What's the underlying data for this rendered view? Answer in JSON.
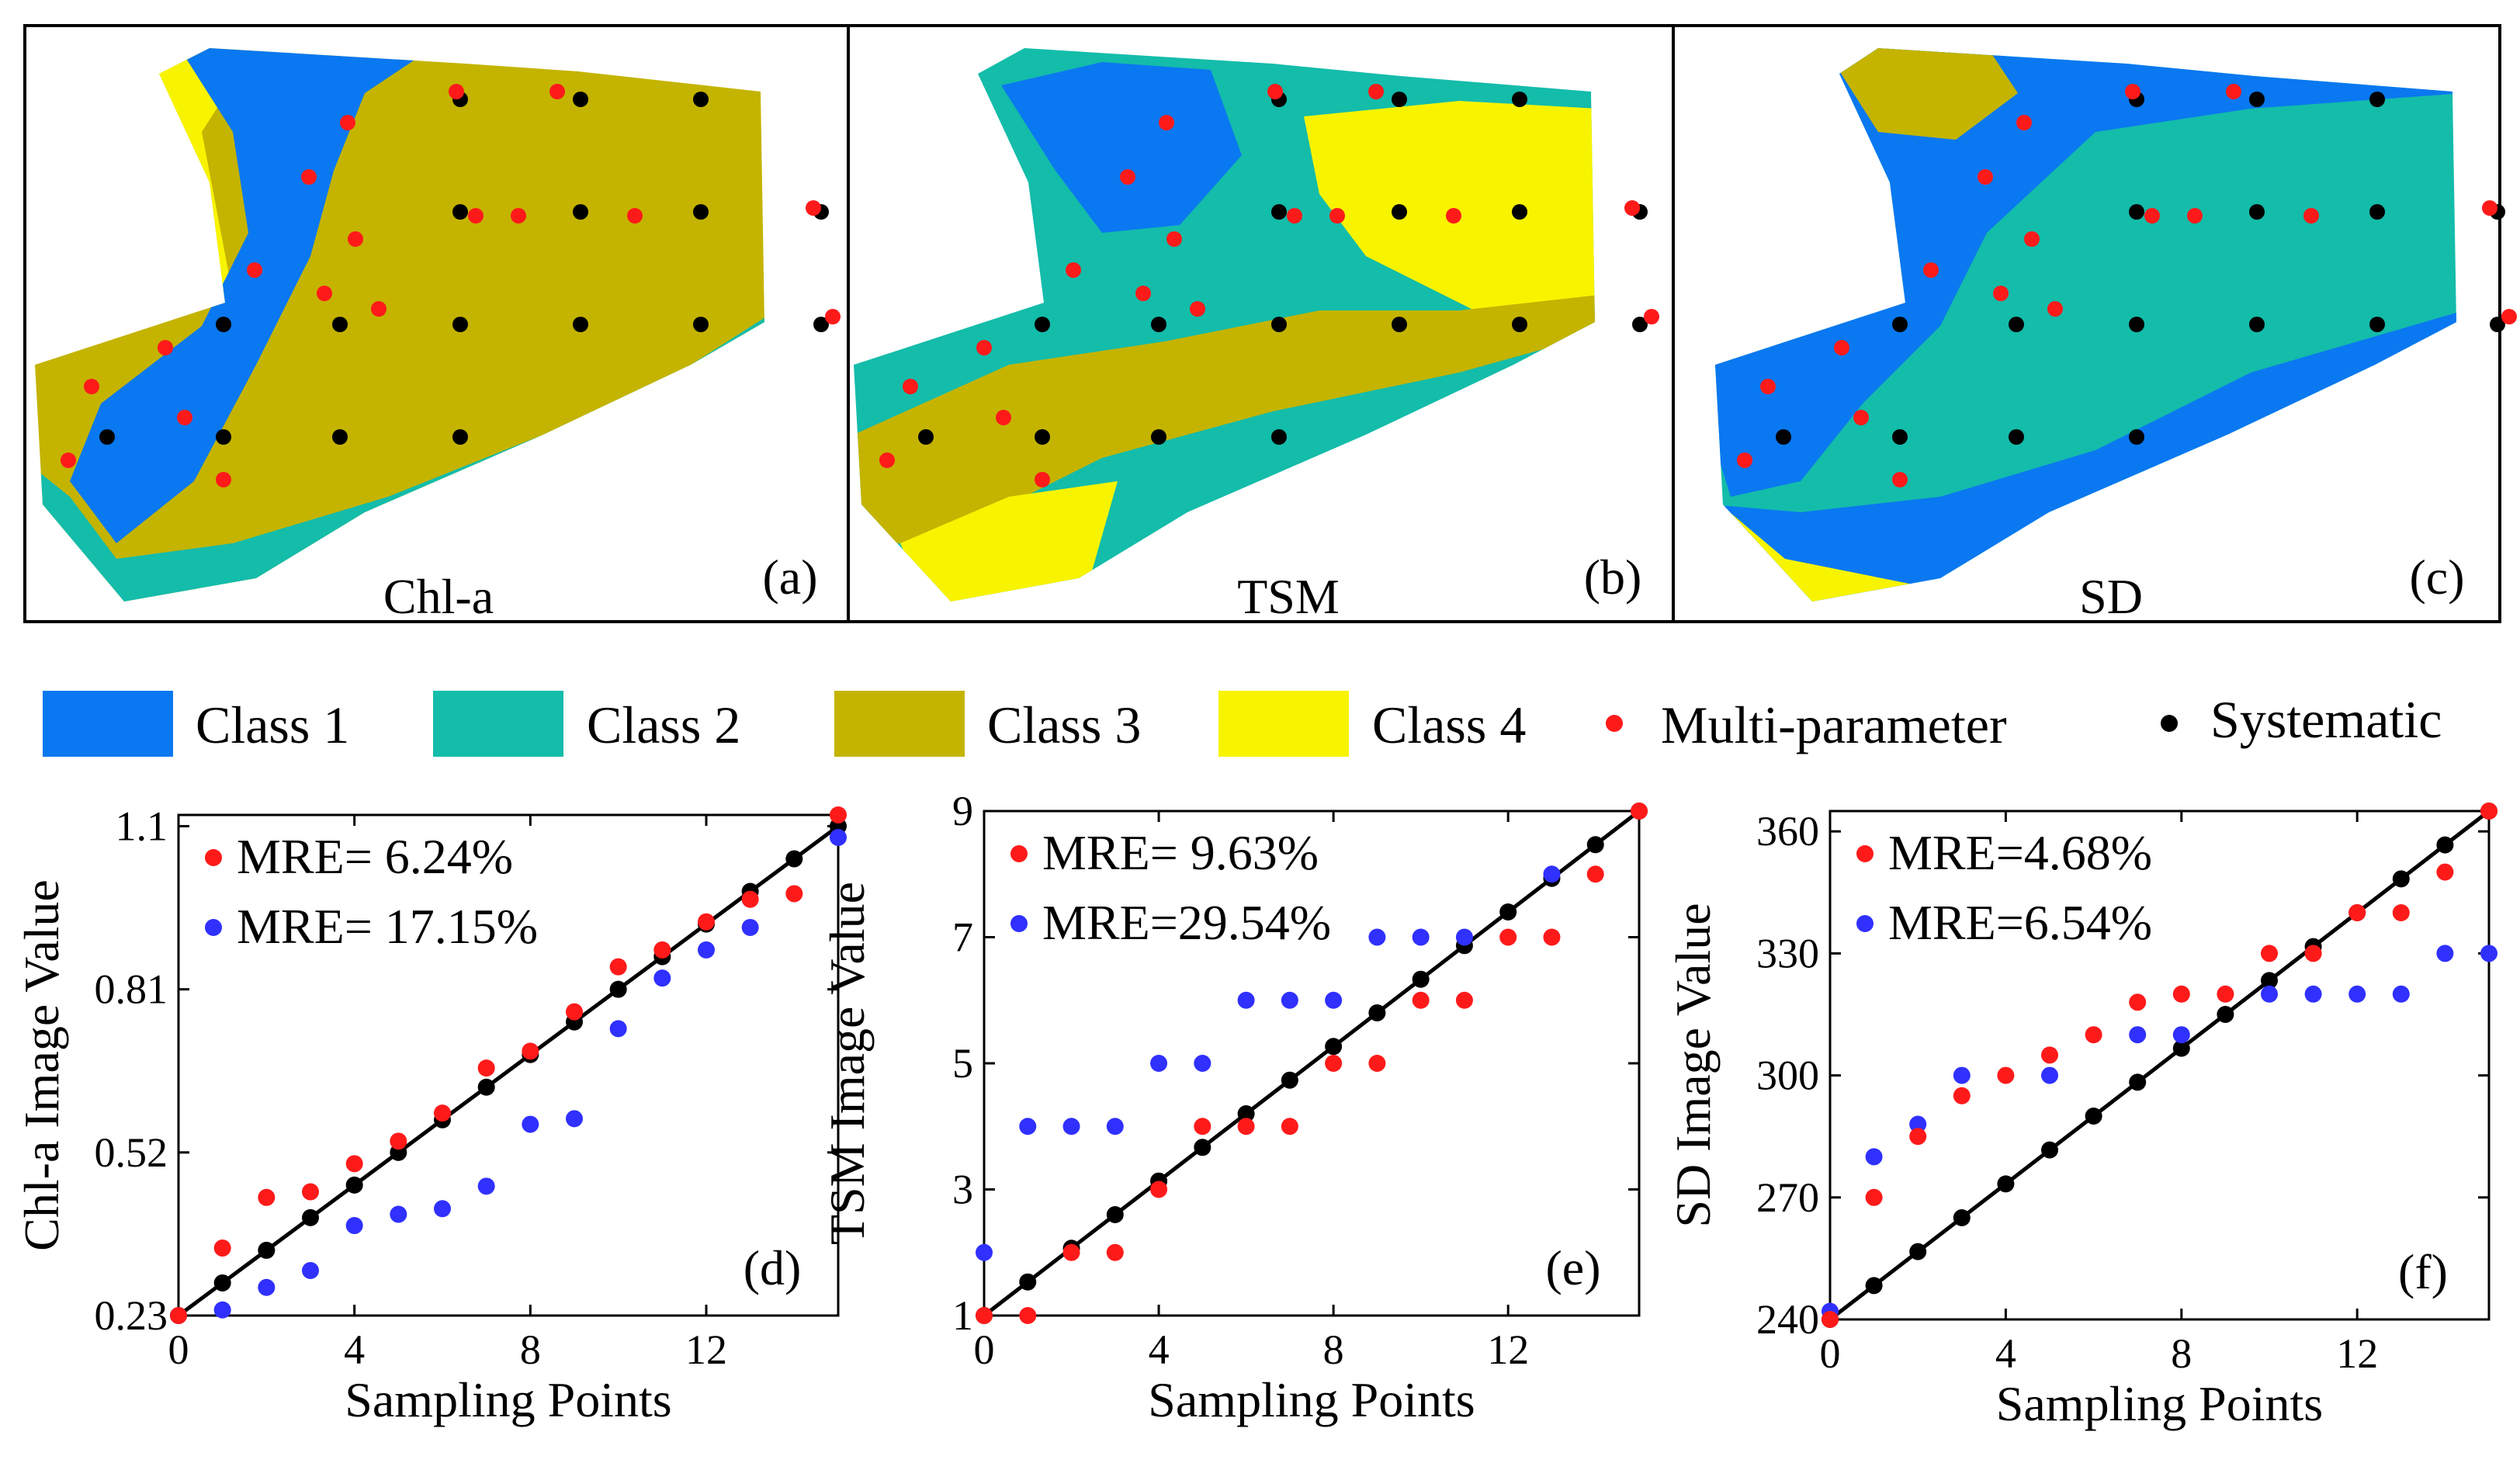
{
  "colors": {
    "class1": "#0a78f0",
    "class2": "#14bcaa",
    "class3": "#c4b400",
    "class4": "#f8f400",
    "multi": "#ff1a1a",
    "systematic": "#000000"
  },
  "maps": [
    {
      "id": "a",
      "label": "Chl-a",
      "tag": "(a)"
    },
    {
      "id": "b",
      "label": "TSM",
      "tag": "(b)"
    },
    {
      "id": "c",
      "label": "SD",
      "tag": "(c)"
    }
  ],
  "legend": {
    "class1": "Class 1",
    "class2": "Class 2",
    "class3": "Class 3",
    "class4": "Class 4",
    "multi": "Multi-parameter",
    "systematic": "Systematic"
  },
  "chart_data": [
    {
      "id": "d",
      "type": "scatter",
      "tag": "(d)",
      "xlabel": "Sampling Points",
      "ylabel": "Chl-a Image Value",
      "xlim": [
        0,
        15
      ],
      "ylim": [
        0.23,
        1.12
      ],
      "xticks": [
        0,
        4,
        8,
        12
      ],
      "xtick_labels": [
        "0",
        "4",
        "8",
        "12"
      ],
      "yticks": [
        0.23,
        0.52,
        0.81,
        1.1
      ],
      "ytick_labels": [
        "0.23",
        "0.52",
        "0.81",
        "1.1"
      ],
      "series": [
        {
          "name": "Multi-parameter",
          "color": "#ff1a1a",
          "label": "MRE= 6.24%",
          "x": [
            0,
            1,
            2,
            3,
            4,
            5,
            6,
            7,
            8,
            9,
            10,
            11,
            12,
            13,
            14,
            15
          ],
          "y": [
            0.23,
            0.35,
            0.44,
            0.45,
            0.5,
            0.54,
            0.59,
            0.67,
            0.7,
            0.77,
            0.85,
            0.88,
            0.93,
            0.97,
            0.98,
            1.12
          ]
        },
        {
          "name": "Systematic",
          "color": "#3030ff",
          "label": "MRE= 17.15%",
          "x": [
            0,
            1,
            2,
            3,
            4,
            5,
            6,
            7,
            8,
            9,
            10,
            11,
            12,
            13,
            14,
            15
          ],
          "y": [
            0.23,
            0.24,
            0.28,
            0.31,
            0.39,
            0.41,
            0.42,
            0.46,
            0.57,
            0.58,
            0.74,
            0.83,
            0.88,
            0.92,
            null,
            1.08
          ]
        },
        {
          "name": "1:1 line",
          "color": "#000000",
          "x": [
            0,
            1,
            2,
            3,
            4,
            5,
            6,
            7,
            8,
            9,
            10,
            11,
            12,
            13,
            14,
            15
          ],
          "y": [
            0.23,
            0.288,
            0.346,
            0.404,
            0.462,
            0.52,
            0.578,
            0.636,
            0.694,
            0.752,
            0.81,
            0.868,
            0.926,
            0.984,
            1.042,
            1.1
          ]
        }
      ]
    },
    {
      "id": "e",
      "type": "scatter",
      "tag": "(e)",
      "xlabel": "Sampling Points",
      "ylabel": "TSM Image Value",
      "xlim": [
        0,
        15
      ],
      "ylim": [
        1,
        9
      ],
      "xticks": [
        0,
        4,
        8,
        12
      ],
      "xtick_labels": [
        "0",
        "4",
        "8",
        "12"
      ],
      "yticks": [
        1,
        3,
        5,
        7,
        9
      ],
      "ytick_labels": [
        "1",
        "3",
        "5",
        "7",
        "9"
      ],
      "series": [
        {
          "name": "Multi-parameter",
          "color": "#ff1a1a",
          "label": "MRE=  9.63%",
          "x": [
            0,
            1,
            2,
            3,
            4,
            5,
            6,
            7,
            8,
            9,
            10,
            11,
            12,
            13,
            14,
            15
          ],
          "y": [
            1,
            1,
            2,
            2,
            3,
            4,
            4,
            4,
            5,
            5,
            6,
            6,
            7,
            7,
            8,
            9
          ]
        },
        {
          "name": "Systematic",
          "color": "#3030ff",
          "label": "MRE=29.54%",
          "x": [
            0,
            1,
            2,
            3,
            4,
            5,
            6,
            7,
            8,
            9,
            10,
            11,
            12,
            13,
            14,
            15
          ],
          "y": [
            2,
            4,
            4,
            4,
            5,
            5,
            6,
            6,
            6,
            7,
            7,
            7,
            null,
            8,
            null,
            null
          ]
        },
        {
          "name": "1:1 line",
          "color": "#000000",
          "x": [
            0,
            1,
            2,
            3,
            4,
            5,
            6,
            7,
            8,
            9,
            10,
            11,
            12,
            13,
            14,
            15
          ],
          "y": [
            1,
            1.533,
            2.067,
            2.6,
            3.133,
            3.667,
            4.2,
            4.733,
            5.267,
            5.8,
            6.333,
            6.867,
            7.4,
            7.933,
            8.467,
            9
          ]
        }
      ]
    },
    {
      "id": "f",
      "type": "scatter",
      "tag": "(f)",
      "xlabel": "Sampling Points",
      "ylabel": "SD Image Value",
      "xlim": [
        0,
        15
      ],
      "ylim": [
        240,
        365
      ],
      "xticks": [
        0,
        4,
        8,
        12
      ],
      "xtick_labels": [
        "0",
        "4",
        "8",
        "12"
      ],
      "yticks": [
        240,
        270,
        300,
        330,
        360
      ],
      "ytick_labels": [
        "240",
        "270",
        "300",
        "330",
        "360"
      ],
      "series": [
        {
          "name": "Multi-parameter",
          "color": "#ff1a1a",
          "label": "MRE=4.68%",
          "x": [
            0,
            1,
            2,
            3,
            4,
            5,
            6,
            7,
            8,
            9,
            10,
            11,
            12,
            13,
            14,
            15
          ],
          "y": [
            240,
            270,
            285,
            295,
            300,
            305,
            310,
            318,
            320,
            320,
            330,
            330,
            340,
            340,
            350,
            365
          ]
        },
        {
          "name": "Systematic",
          "color": "#3030ff",
          "label": "MRE=6.54%",
          "x": [
            0,
            1,
            2,
            3,
            4,
            5,
            6,
            7,
            8,
            9,
            10,
            11,
            12,
            13,
            14,
            15
          ],
          "y": [
            242,
            280,
            288,
            300,
            null,
            300,
            null,
            310,
            310,
            null,
            320,
            320,
            320,
            320,
            330,
            330
          ]
        },
        {
          "name": "1:1 line",
          "color": "#000000",
          "x": [
            0,
            1,
            2,
            3,
            4,
            5,
            6,
            7,
            8,
            9,
            10,
            11,
            12,
            13,
            14,
            15
          ],
          "y": [
            240,
            248.33,
            256.67,
            265,
            273.33,
            281.67,
            290,
            298.33,
            306.67,
            315,
            323.33,
            331.67,
            340,
            348.33,
            356.67,
            365
          ]
        }
      ]
    }
  ]
}
